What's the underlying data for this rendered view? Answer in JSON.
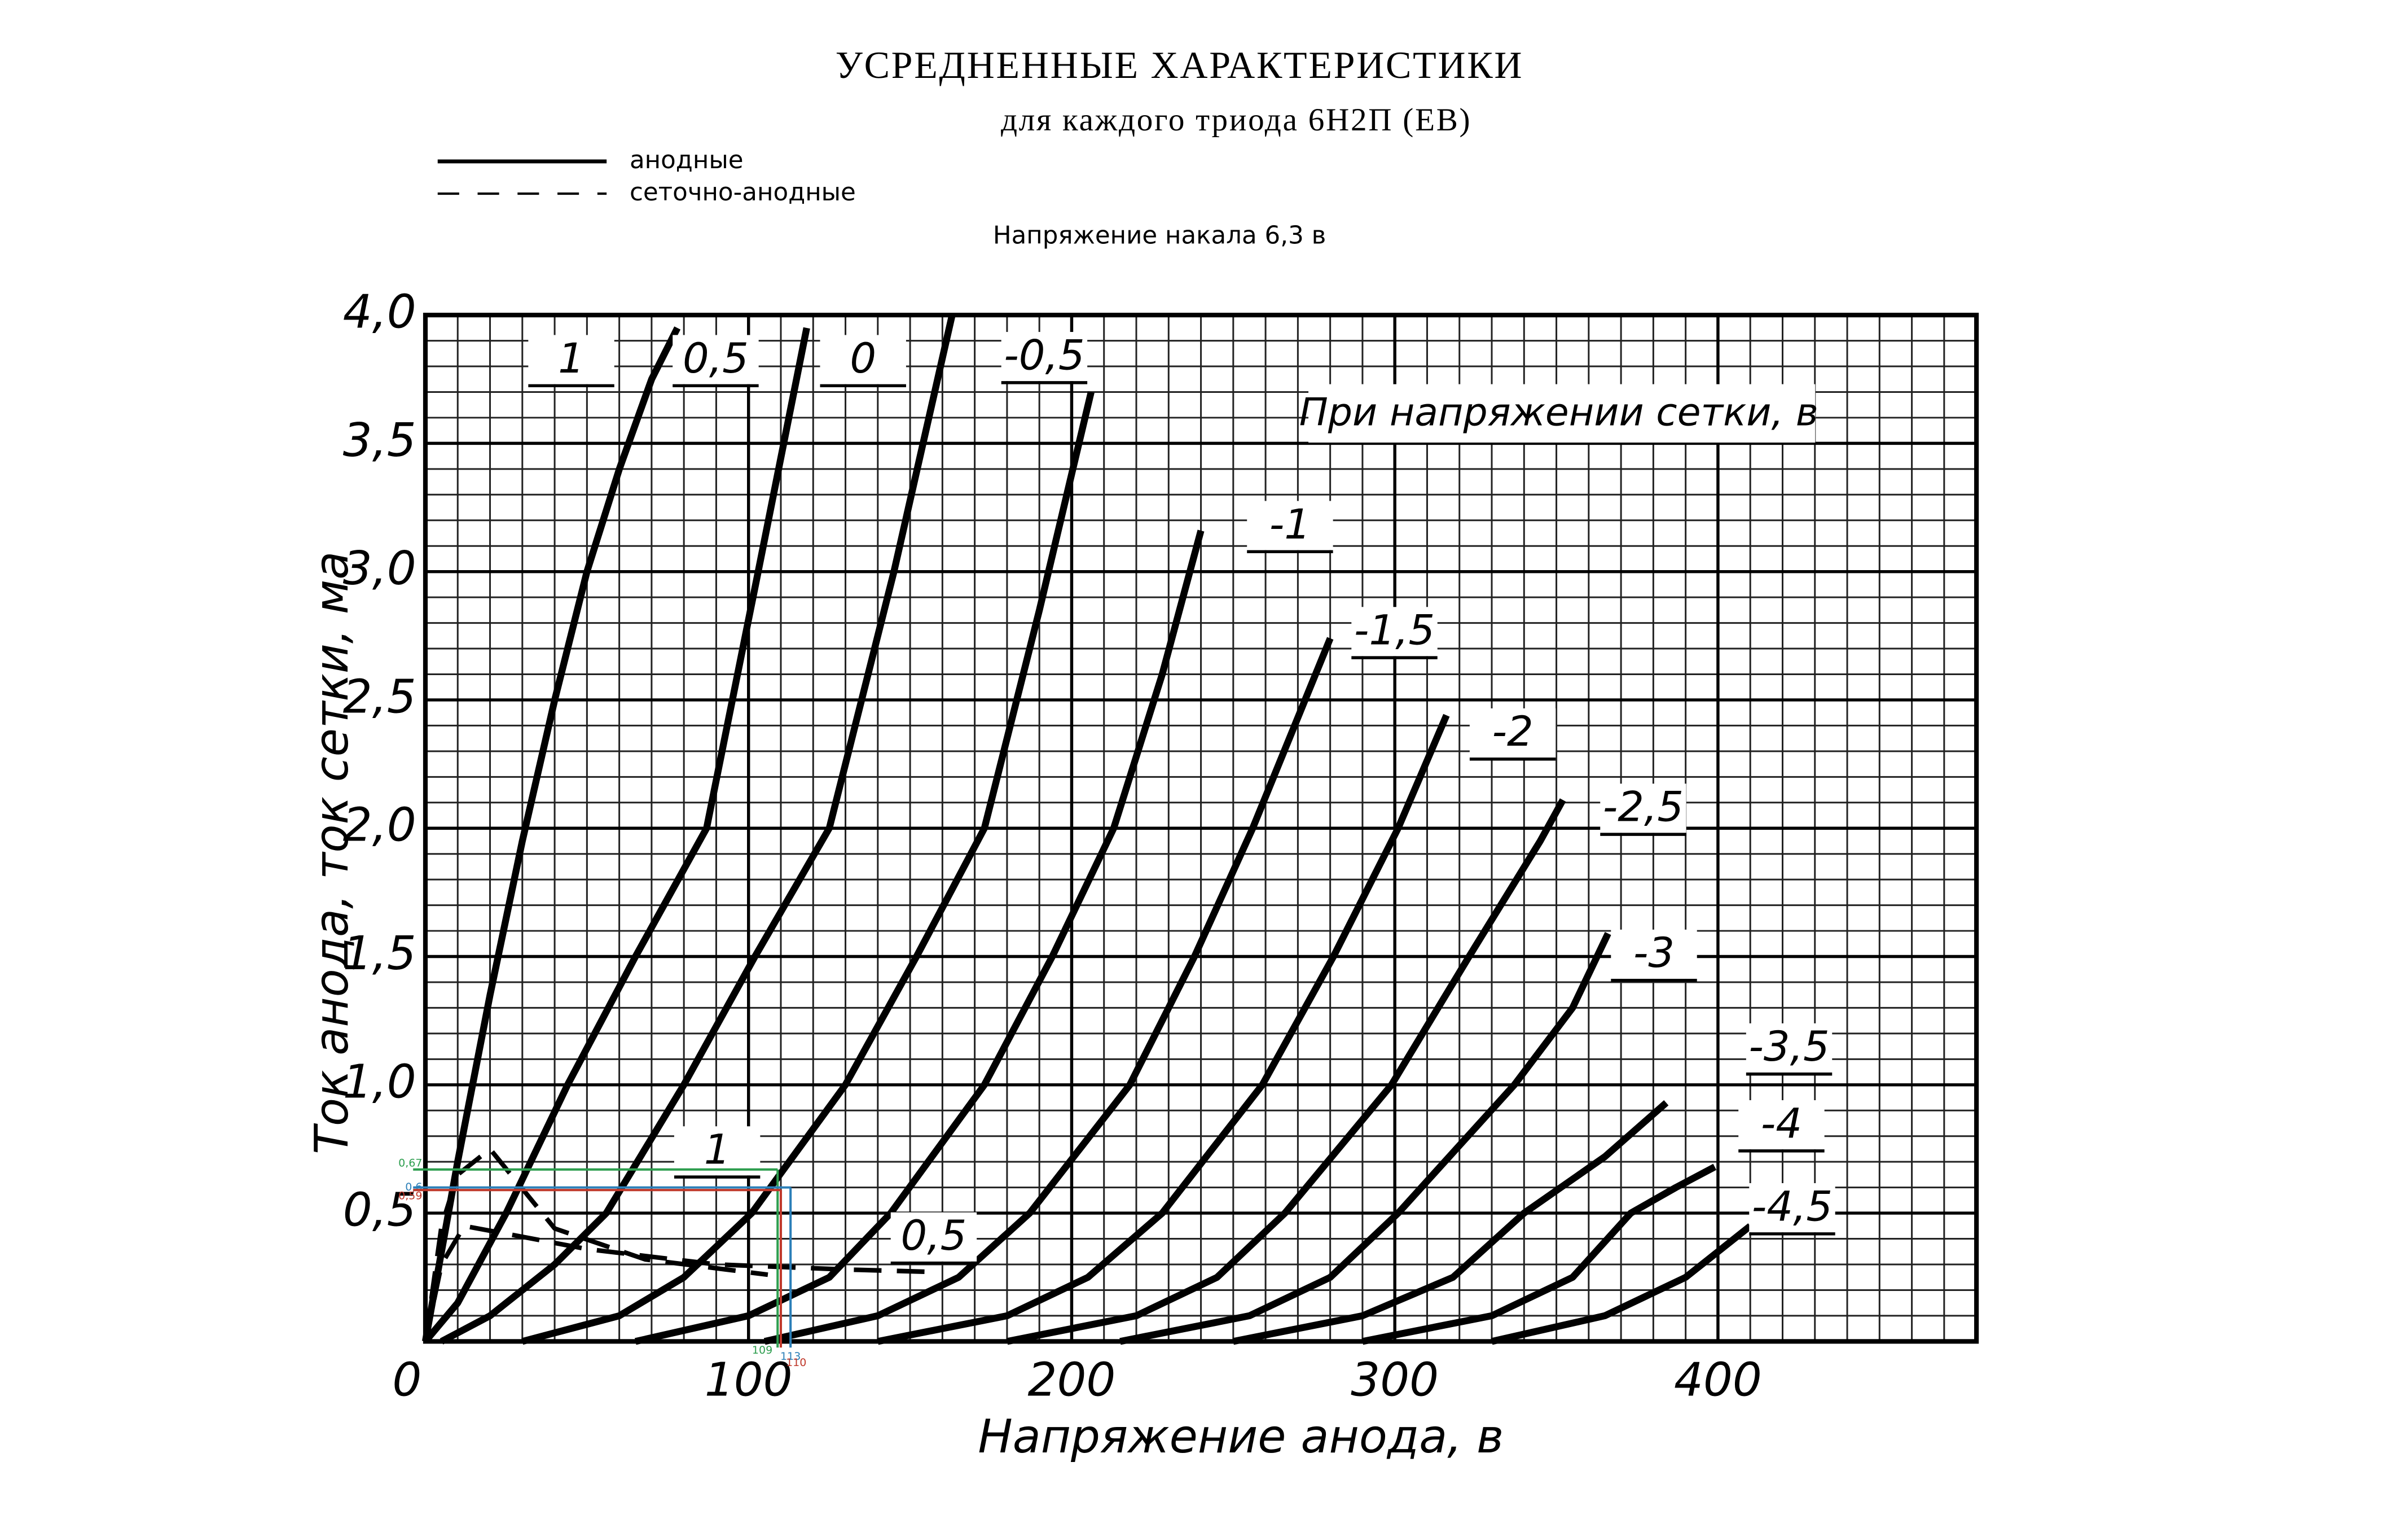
{
  "chart_data": {
    "type": "line",
    "title": "УСРЕДНЕННЫЕ ХАРАКТЕРИСТИКИ",
    "subtitle": "для каждого триода 6Н2П (ЕВ)",
    "note": "Напряжение накала 6,3 в",
    "annotation": "При напряжении сетки, в",
    "x_label": "Напряжение анода, в",
    "y_label": "Ток анода, ток сетки, ма",
    "legend": [
      {
        "label": "анодные",
        "style": "solid"
      },
      {
        "label": "сеточно-анодные",
        "style": "dashed"
      }
    ],
    "xlim": [
      0,
      480
    ],
    "ylim": [
      0,
      4
    ],
    "xticks": [
      0,
      100,
      200,
      300,
      400
    ],
    "yticks": [
      {
        "value": 0.5,
        "label": "0,5"
      },
      {
        "value": 1,
        "label": "1,0"
      },
      {
        "value": 1.5,
        "label": "1,5"
      },
      {
        "value": 2,
        "label": "2,0"
      },
      {
        "value": 2.5,
        "label": "2,5"
      },
      {
        "value": 3,
        "label": "3,0"
      },
      {
        "value": 3.5,
        "label": "3,5"
      },
      {
        "value": 4,
        "label": "4,0"
      }
    ],
    "grid": true,
    "minor_grid": {
      "x": 10,
      "y": 0.1
    },
    "series": [
      {
        "name": "1",
        "style": "solid",
        "color": "#000000",
        "x": [
          0,
          5,
          10,
          20,
          30,
          40,
          50,
          60,
          70,
          78
        ],
        "values": [
          0,
          0.35,
          0.7,
          1.35,
          1.95,
          2.5,
          3.0,
          3.4,
          3.75,
          3.95
        ]
      },
      {
        "name": "0,5",
        "style": "solid",
        "color": "#000000",
        "x": [
          0,
          10,
          25,
          44,
          65,
          87,
          103,
          118
        ],
        "values": [
          0,
          0.15,
          0.5,
          1.0,
          1.5,
          2.0,
          3.0,
          3.95
        ]
      },
      {
        "name": "0",
        "style": "solid",
        "color": "#000000",
        "x": [
          5,
          20,
          40,
          56,
          80,
          102,
          125,
          145,
          163
        ],
        "values": [
          0,
          0.1,
          0.3,
          0.5,
          1.0,
          1.5,
          2.0,
          3.0,
          4.0
        ]
      },
      {
        "name": "-0,5",
        "style": "solid",
        "color": "#000000",
        "x": [
          30,
          60,
          80,
          101,
          130,
          152,
          173,
          190,
          206
        ],
        "values": [
          0,
          0.1,
          0.25,
          0.5,
          1.0,
          1.5,
          2.0,
          2.85,
          3.7
        ]
      },
      {
        "name": "-1",
        "style": "solid",
        "color": "#000000",
        "x": [
          65,
          100,
          125,
          144,
          173,
          194,
          213,
          228,
          240
        ],
        "values": [
          0,
          0.1,
          0.25,
          0.5,
          1.0,
          1.5,
          2.0,
          2.6,
          3.16
        ]
      },
      {
        "name": "-1,5",
        "style": "solid",
        "color": "#000000",
        "x": [
          105,
          140,
          165,
          187,
          218,
          238,
          256,
          280
        ],
        "values": [
          0,
          0.1,
          0.25,
          0.5,
          1.0,
          1.5,
          2.0,
          2.74
        ]
      },
      {
        "name": "-2",
        "style": "solid",
        "color": "#000000",
        "x": [
          140,
          180,
          205,
          228,
          259,
          281,
          301,
          316
        ],
        "values": [
          0,
          0.1,
          0.25,
          0.5,
          1.0,
          1.5,
          2.0,
          2.44
        ]
      },
      {
        "name": "-2,5",
        "style": "solid",
        "color": "#000000",
        "x": [
          180,
          220,
          245,
          266,
          299,
          323,
          345,
          352
        ],
        "values": [
          0,
          0.1,
          0.25,
          0.5,
          1.0,
          1.5,
          1.95,
          2.11
        ]
      },
      {
        "name": "-3",
        "style": "solid",
        "color": "#000000",
        "x": [
          215,
          255,
          280,
          301,
          337,
          355,
          366
        ],
        "values": [
          0,
          0.1,
          0.25,
          0.5,
          1.0,
          1.3,
          1.59
        ]
      },
      {
        "name": "-3,5",
        "style": "solid",
        "color": "#000000",
        "x": [
          250,
          290,
          318,
          340,
          365,
          384
        ],
        "values": [
          0,
          0.1,
          0.25,
          0.5,
          0.72,
          0.93
        ]
      },
      {
        "name": "-4",
        "style": "solid",
        "color": "#000000",
        "x": [
          290,
          330,
          355,
          373,
          387,
          399
        ],
        "values": [
          0,
          0.1,
          0.25,
          0.5,
          0.6,
          0.68
        ]
      },
      {
        "name": "-4,5",
        "style": "solid",
        "color": "#000000",
        "x": [
          330,
          365,
          390,
          410
        ],
        "values": [
          0,
          0.1,
          0.25,
          0.45
        ]
      },
      {
        "name": "1",
        "style": "dashed",
        "color": "#000000",
        "x": [
          0,
          5,
          10,
          20,
          40,
          68,
          106
        ],
        "values": [
          0,
          0.45,
          0.65,
          0.75,
          0.44,
          0.32,
          0.26
        ]
      },
      {
        "name": "0,5",
        "style": "dashed",
        "color": "#000000",
        "x": [
          0,
          5,
          12,
          25,
          50,
          90,
          130,
          159
        ],
        "values": [
          0,
          0.3,
          0.45,
          0.42,
          0.36,
          0.3,
          0.28,
          0.27
        ]
      }
    ],
    "guides": [
      {
        "x": 109,
        "y": 0.67,
        "x_label": "109",
        "y_label": "0,67",
        "color": "#2e9e4f"
      },
      {
        "x": 113,
        "y": 0.6,
        "x_label": "113",
        "y_label": "0,6",
        "color": "#2b7fb8"
      },
      {
        "x": 110,
        "y": 0.59,
        "x_label": "110",
        "y_label": "0,59",
        "color": "#c0392b"
      }
    ]
  }
}
